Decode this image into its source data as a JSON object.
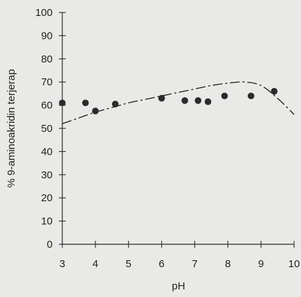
{
  "chart_data": {
    "type": "scatter",
    "title": "",
    "xlabel": "pH",
    "ylabel": "% 9-aminoakridin terjerap",
    "xlim": [
      3,
      10
    ],
    "ylim": [
      0,
      100
    ],
    "x_ticks": [
      "3",
      "4",
      "5",
      "6",
      "7",
      "8",
      "9",
      "10"
    ],
    "y_ticks": [
      "0",
      "10",
      "20",
      "30",
      "40",
      "50",
      "60",
      "70",
      "80",
      "90",
      "100"
    ],
    "grid": false,
    "legend": "none",
    "series": [
      {
        "marker": "filled-circle",
        "x": [
          3.0,
          3.7,
          4.0,
          4.6,
          6.0,
          6.7,
          7.1,
          7.4,
          7.9,
          8.7,
          9.4
        ],
        "y": [
          61,
          61,
          57.5,
          60.5,
          63,
          62,
          62,
          61.5,
          64,
          64,
          66
        ]
      },
      {
        "line_style": "dash-dot",
        "x": [
          3.0,
          3.5,
          4.0,
          4.5,
          5.0,
          5.5,
          6.0,
          6.5,
          7.0,
          7.5,
          8.0,
          8.5,
          9.0,
          9.5,
          10.0
        ],
        "y": [
          52,
          54.5,
          57,
          59,
          61,
          62.5,
          64,
          65.5,
          67,
          68.5,
          69.5,
          70,
          68.5,
          63,
          56
        ]
      }
    ]
  },
  "colors": {
    "background": "#e9e9e7",
    "marker": "#2b2b2b",
    "line": "#1a1a1a"
  }
}
